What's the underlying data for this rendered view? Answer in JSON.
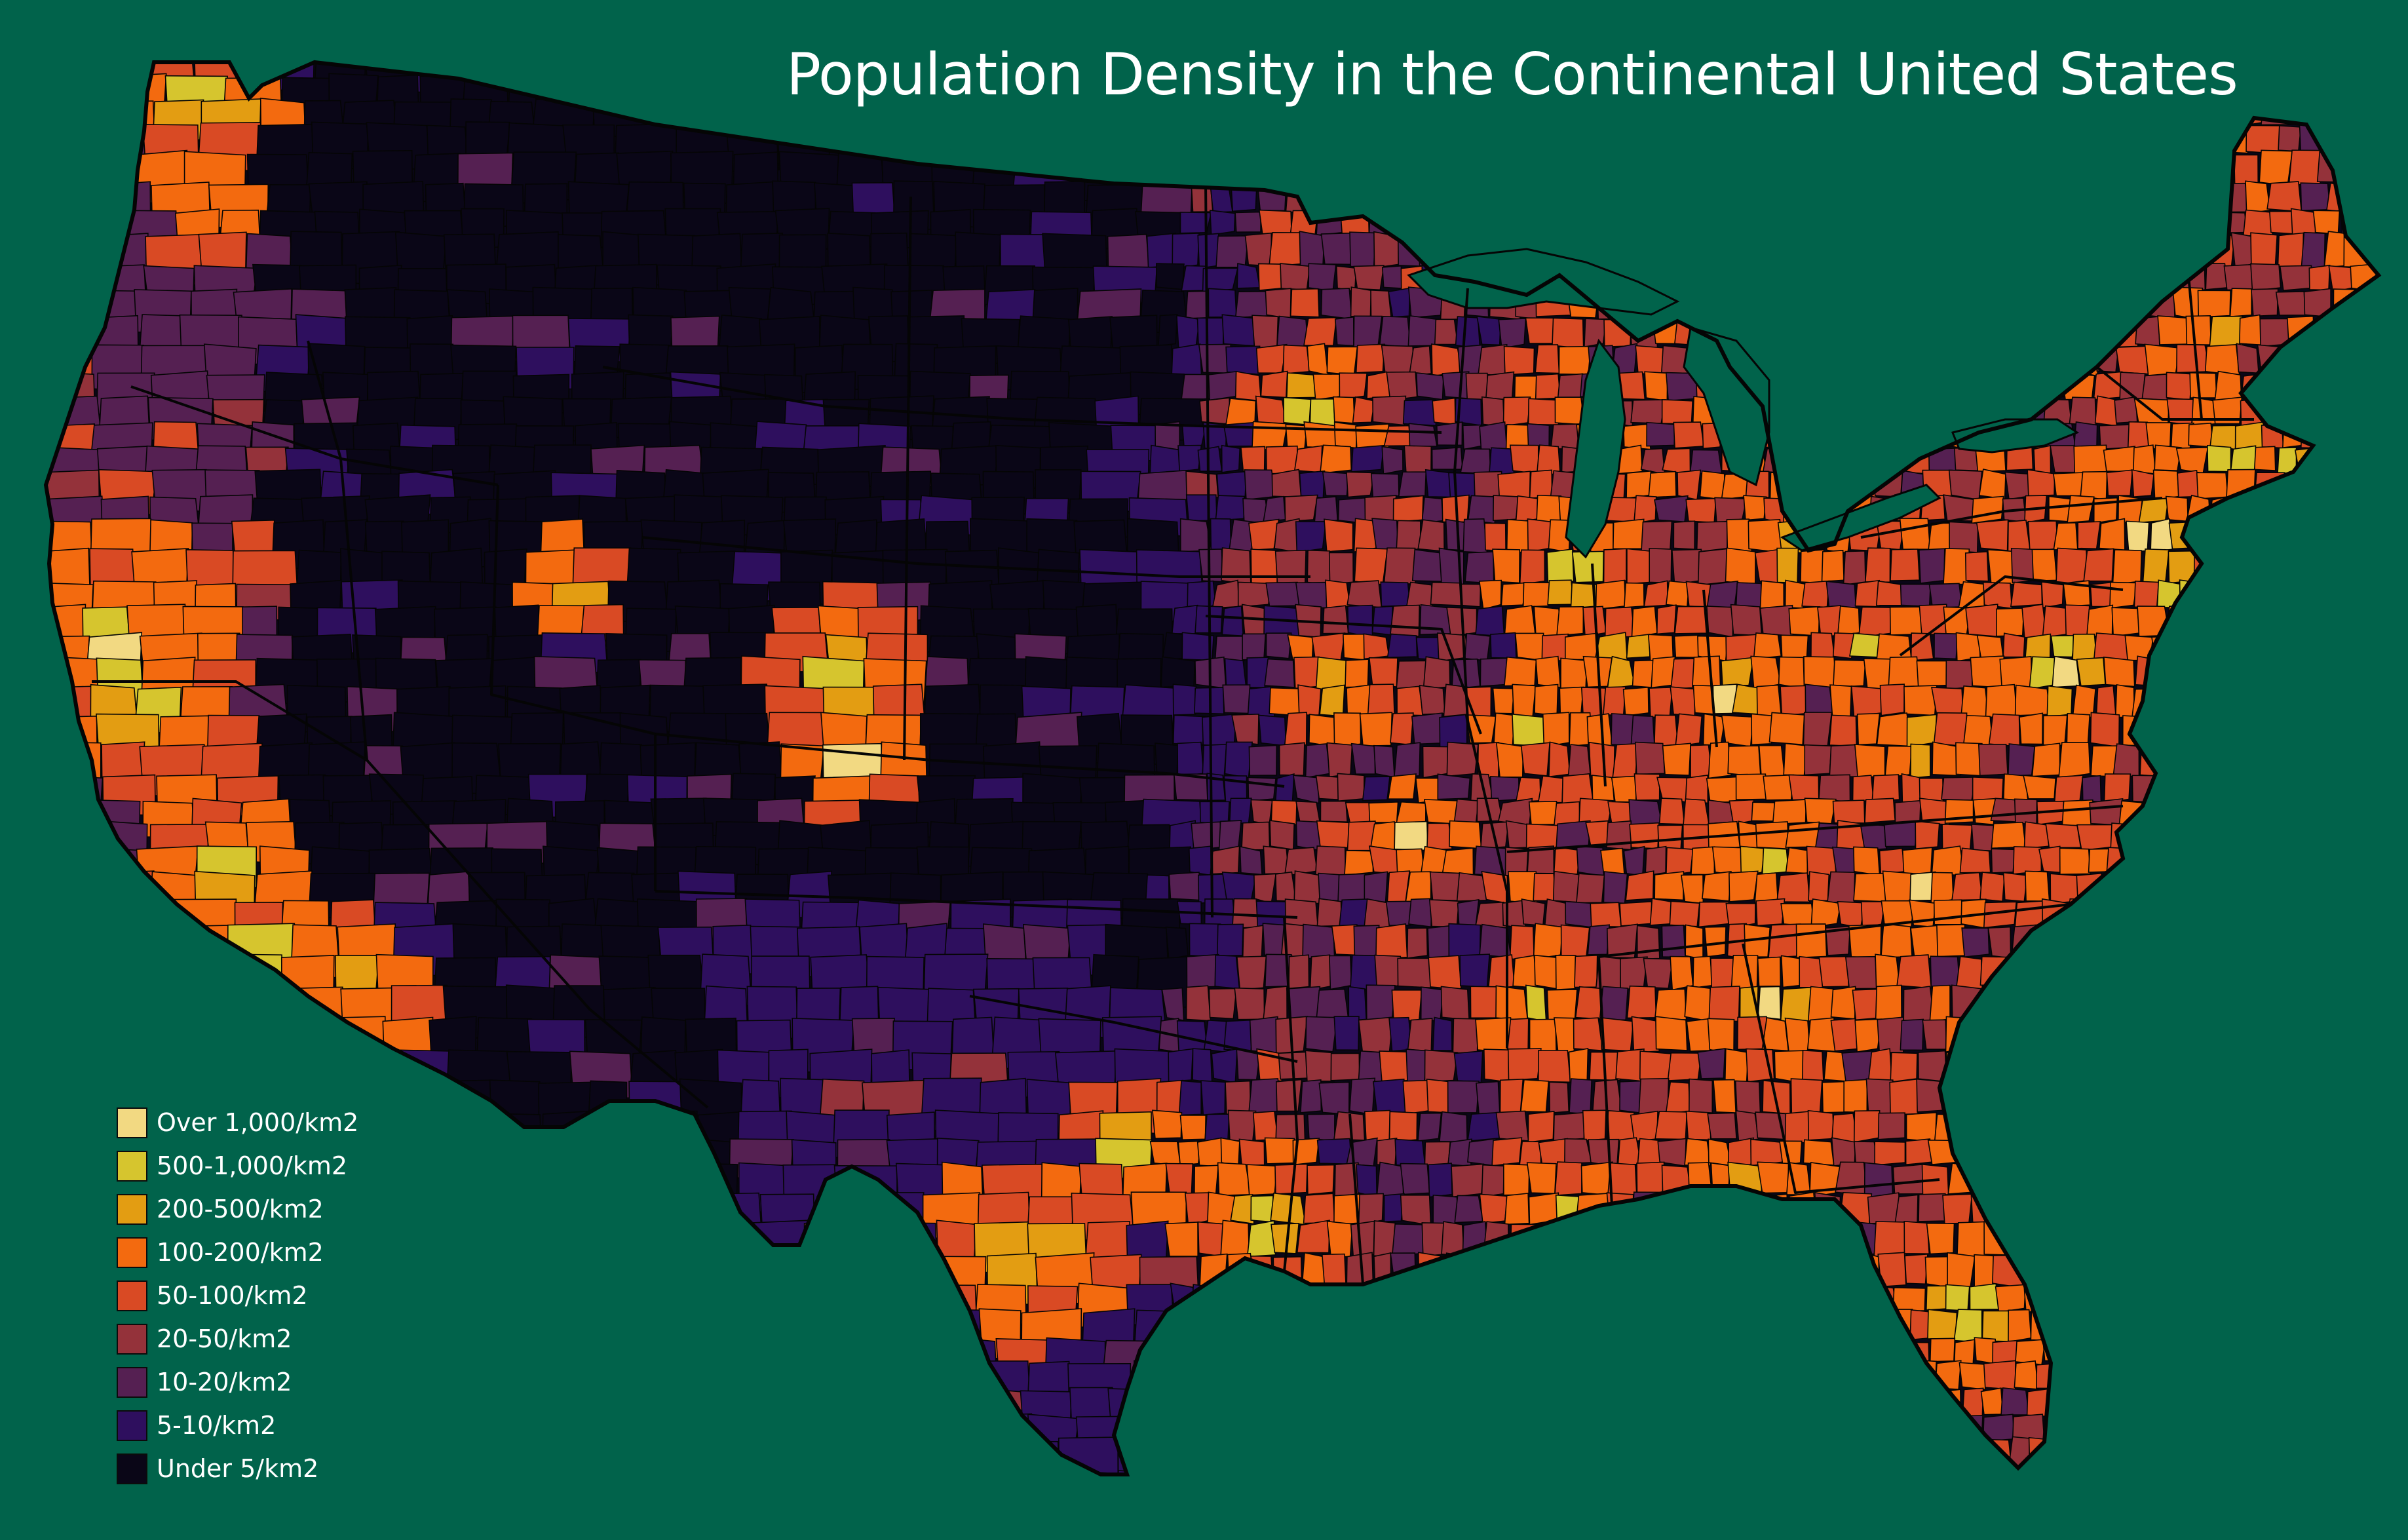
{
  "title": "Population Density in the Continental United States",
  "colors": {
    "background": "#01634b",
    "outline": "#050505"
  },
  "legend": {
    "items": [
      {
        "label": "Over 1,000/km2",
        "color": "#f2d982"
      },
      {
        "label": "500-1,000/km2",
        "color": "#d6c52e"
      },
      {
        "label": "200-500/km2",
        "color": "#e39d12"
      },
      {
        "label": "100-200/km2",
        "color": "#f36a0f"
      },
      {
        "label": "50-100/km2",
        "color": "#d94a24"
      },
      {
        "label": "20-50/km2",
        "color": "#94323a"
      },
      {
        "label": "10-20/km2",
        "color": "#552052"
      },
      {
        "label": "5-10/km2",
        "color": "#2e0f5e"
      },
      {
        "label": "Under 5/km2",
        "color": "#0a0617"
      }
    ]
  }
}
